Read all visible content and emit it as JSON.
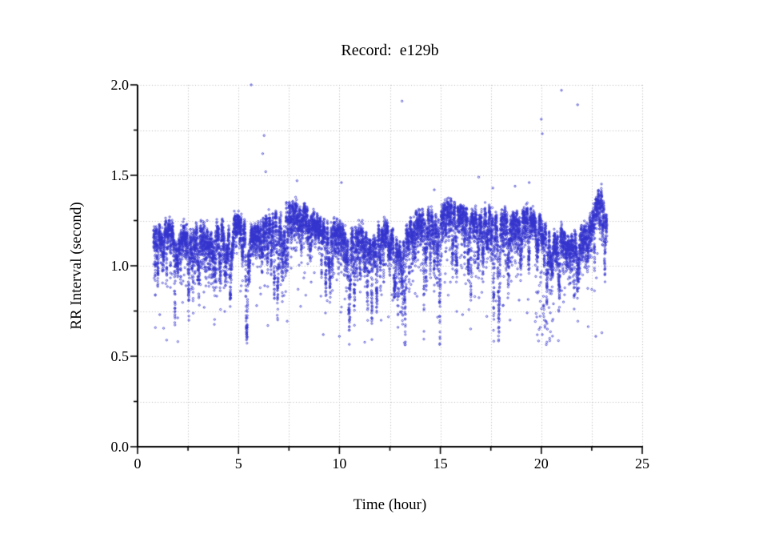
{
  "title": "Record:  e129b",
  "chart_data": {
    "type": "scatter",
    "title": "Record:  e129b",
    "xlabel": "Time (hour)",
    "ylabel": "RR Interval (second)",
    "xlim": [
      0,
      25
    ],
    "ylim": [
      0.0,
      2.0
    ],
    "xaxis": {
      "tick_values": [
        0,
        5,
        10,
        15,
        20,
        25
      ],
      "tick_labels": [
        "0",
        "5",
        "10",
        "15",
        "20",
        "25"
      ],
      "minor_step": 2.5
    },
    "yaxis": {
      "tick_values": [
        0.0,
        0.5,
        1.0,
        1.5,
        2.0
      ],
      "tick_labels": [
        "0.0",
        "0.5",
        "1.0",
        "1.5",
        "2.0"
      ],
      "minor_step": 0.25
    },
    "grid": {
      "on": true,
      "style": "dotted",
      "color": "#b4b4b4",
      "x_step": 2.5,
      "y_step": 0.25
    },
    "marker": {
      "shape": "open-circle",
      "color": "#3434cd",
      "radius_px": 1.15
    },
    "legend": "none",
    "description": "RR-interval tachogram for record e129b: dense band of beat-to-beat intervals oscillating between about 1.0 and 1.35 s from hour 0.8 to 23.2, with a pronounced dip to ~0.95 s near hour 13, a cluster of short intervals (0.6-0.8 s) near hour 20, a lowered band (~1.0-1.15 s) from hours 20.5-22.3, a final rise peaking near 1.42 s around hour 23, and sparse outliers up to 2.0 s.",
    "x_data_range": [
      0.79,
      23.25
    ],
    "n_points_rendered": 12000,
    "band_mean_control_points": [
      [
        0.79,
        1.16
      ],
      [
        1.0,
        1.13
      ],
      [
        1.2,
        1.1
      ],
      [
        1.45,
        1.16
      ],
      [
        1.7,
        1.13
      ],
      [
        2.0,
        1.09
      ],
      [
        2.3,
        1.13
      ],
      [
        2.6,
        1.08
      ],
      [
        2.9,
        1.12
      ],
      [
        3.2,
        1.14
      ],
      [
        3.5,
        1.09
      ],
      [
        3.8,
        1.13
      ],
      [
        4.1,
        1.17
      ],
      [
        4.4,
        1.12
      ],
      [
        4.7,
        1.17
      ],
      [
        5.0,
        1.19
      ],
      [
        5.3,
        1.15
      ],
      [
        5.6,
        1.11
      ],
      [
        5.9,
        1.13
      ],
      [
        6.2,
        1.16
      ],
      [
        6.5,
        1.18
      ],
      [
        6.8,
        1.2
      ],
      [
        7.1,
        1.23
      ],
      [
        7.4,
        1.26
      ],
      [
        7.7,
        1.24
      ],
      [
        8.0,
        1.26
      ],
      [
        8.3,
        1.24
      ],
      [
        8.6,
        1.2
      ],
      [
        8.9,
        1.17
      ],
      [
        9.2,
        1.15
      ],
      [
        9.5,
        1.12
      ],
      [
        9.8,
        1.15
      ],
      [
        10.1,
        1.12
      ],
      [
        10.4,
        1.09
      ],
      [
        10.7,
        1.13
      ],
      [
        11.0,
        1.14
      ],
      [
        11.3,
        1.1
      ],
      [
        11.6,
        1.09
      ],
      [
        11.9,
        1.13
      ],
      [
        12.2,
        1.14
      ],
      [
        12.5,
        1.13
      ],
      [
        12.8,
        1.07
      ],
      [
        13.0,
        1.0
      ],
      [
        13.2,
        1.07
      ],
      [
        13.5,
        1.16
      ],
      [
        13.8,
        1.2
      ],
      [
        14.1,
        1.21
      ],
      [
        14.4,
        1.23
      ],
      [
        14.7,
        1.24
      ],
      [
        15.0,
        1.24
      ],
      [
        15.3,
        1.26
      ],
      [
        15.6,
        1.25
      ],
      [
        15.9,
        1.24
      ],
      [
        16.2,
        1.22
      ],
      [
        16.5,
        1.2
      ],
      [
        16.8,
        1.21
      ],
      [
        17.1,
        1.22
      ],
      [
        17.4,
        1.24
      ],
      [
        17.7,
        1.19
      ],
      [
        18.0,
        1.21
      ],
      [
        18.3,
        1.22
      ],
      [
        18.6,
        1.2
      ],
      [
        18.9,
        1.19
      ],
      [
        19.2,
        1.22
      ],
      [
        19.5,
        1.21
      ],
      [
        19.8,
        1.19
      ],
      [
        20.1,
        1.16
      ],
      [
        20.4,
        1.11
      ],
      [
        20.7,
        1.07
      ],
      [
        21.0,
        1.12
      ],
      [
        21.3,
        1.05
      ],
      [
        21.6,
        1.09
      ],
      [
        21.9,
        1.11
      ],
      [
        22.2,
        1.13
      ],
      [
        22.45,
        1.17
      ],
      [
        22.7,
        1.27
      ],
      [
        22.9,
        1.35
      ],
      [
        23.0,
        1.37
      ],
      [
        23.1,
        1.28
      ],
      [
        23.25,
        1.17
      ]
    ],
    "band_half_thickness": 0.1,
    "high_outliers": [
      [
        5.63,
        2.0
      ],
      [
        13.1,
        1.91
      ],
      [
        21.0,
        1.97
      ],
      [
        21.8,
        1.89
      ],
      [
        20.0,
        1.81
      ],
      [
        20.05,
        1.73
      ],
      [
        6.27,
        1.72
      ],
      [
        6.2,
        1.62
      ],
      [
        19.4,
        1.46
      ],
      [
        18.7,
        1.44
      ],
      [
        16.9,
        1.49
      ],
      [
        7.9,
        1.47
      ],
      [
        10.1,
        1.46
      ],
      [
        14.7,
        1.42
      ],
      [
        17.6,
        1.43
      ],
      [
        6.35,
        1.52
      ]
    ],
    "low_outliers": [
      [
        1.1,
        0.73
      ],
      [
        2.15,
        0.94
      ],
      [
        2.4,
        0.89
      ],
      [
        2.65,
        0.87
      ],
      [
        3.3,
        0.77
      ],
      [
        3.65,
        0.9
      ],
      [
        4.45,
        0.91
      ],
      [
        5.1,
        0.86
      ],
      [
        5.9,
        0.78
      ],
      [
        6.3,
        0.89
      ],
      [
        7.2,
        0.92
      ],
      [
        7.95,
        0.87
      ],
      [
        8.6,
        0.91
      ],
      [
        9.2,
        0.62
      ],
      [
        9.35,
        0.84
      ],
      [
        10.0,
        0.61
      ],
      [
        10.35,
        0.86
      ],
      [
        10.9,
        0.92
      ],
      [
        11.6,
        0.89
      ],
      [
        12.2,
        0.91
      ],
      [
        12.6,
        0.84
      ],
      [
        12.9,
        0.66
      ],
      [
        13.15,
        0.79
      ],
      [
        13.45,
        0.91
      ],
      [
        14.3,
        0.94
      ],
      [
        14.9,
        0.89
      ],
      [
        15.5,
        0.91
      ],
      [
        16.1,
        0.73
      ],
      [
        16.55,
        0.94
      ],
      [
        17.3,
        0.72
      ],
      [
        17.65,
        0.84
      ],
      [
        18.1,
        0.78
      ],
      [
        18.45,
        0.7
      ],
      [
        18.9,
        0.81
      ],
      [
        19.3,
        0.74
      ],
      [
        19.95,
        0.66
      ],
      [
        20.05,
        0.62
      ],
      [
        20.15,
        0.7
      ],
      [
        20.3,
        0.65
      ],
      [
        20.45,
        0.74
      ],
      [
        20.6,
        0.79
      ],
      [
        21.1,
        0.8
      ],
      [
        22.7,
        0.61
      ],
      [
        23.0,
        0.63
      ]
    ],
    "seed": 42
  }
}
